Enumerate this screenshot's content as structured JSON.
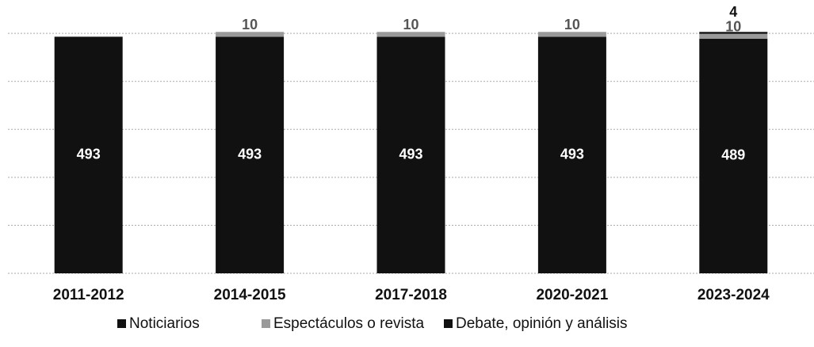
{
  "chart_data": {
    "type": "stacked_bar",
    "categories": [
      "2011-2012",
      "2014-2015",
      "2017-2018",
      "2020-2021",
      "2023-2024"
    ],
    "series": [
      {
        "name": "Noticiarios",
        "color": "#111111",
        "values": [
          493,
          493,
          493,
          493,
          489
        ]
      },
      {
        "name": "Espectáculos o revista",
        "color": "#9a9a9a",
        "values": [
          null,
          10,
          10,
          10,
          10
        ]
      },
      {
        "name": "Debate, opinión y análisis",
        "color": "#111111",
        "values": [
          null,
          null,
          null,
          null,
          4
        ]
      }
    ],
    "ylim": [
      0,
      520
    ],
    "yticks": [
      0,
      100,
      200,
      300,
      400,
      500
    ],
    "grid": true,
    "legend": "bottom"
  }
}
